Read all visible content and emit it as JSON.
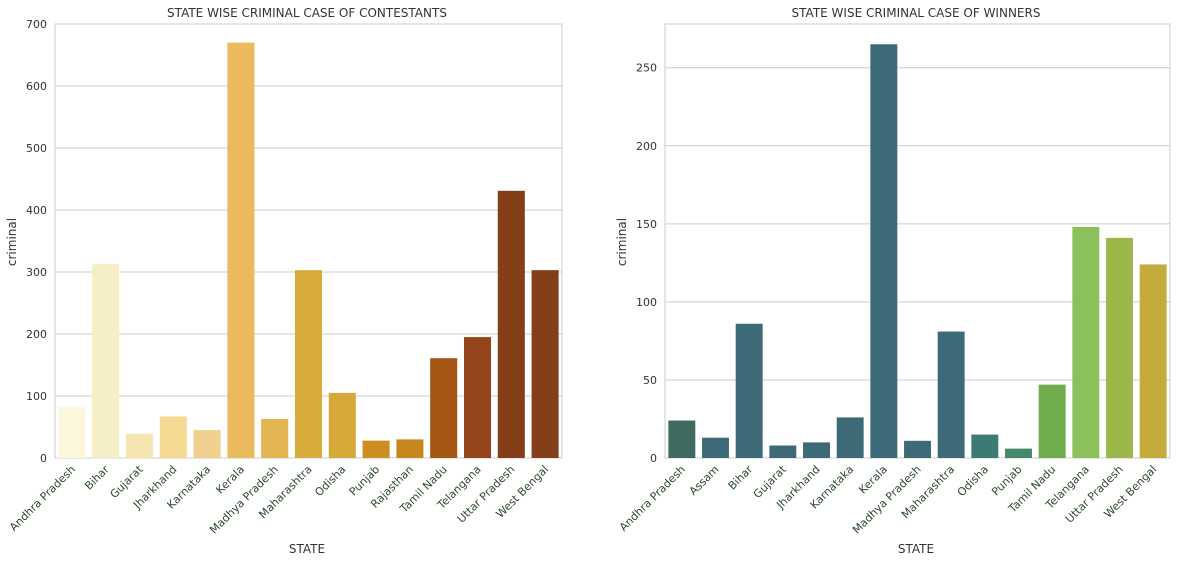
{
  "chart_data": [
    {
      "type": "bar",
      "title": "STATE WISE CRIMINAL CASE OF CONTESTANTS",
      "xlabel": "STATE",
      "ylabel": "criminal",
      "ylim": [
        0,
        700
      ],
      "yticks": [
        0,
        100,
        200,
        300,
        400,
        500,
        600,
        700
      ],
      "grid": true,
      "categories": [
        "Andhra Pradesh",
        "Bihar",
        "Gujarat",
        "Jharkhand",
        "Karnataka",
        "Kerala",
        "Madhya Pradesh",
        "Maharashtra",
        "Odisha",
        "Punjab",
        "Rajasthan",
        "Tamil Nadu",
        "Telangana",
        "Uttar Pradesh",
        "West Bengal"
      ],
      "values": [
        82,
        313,
        39,
        67,
        45,
        670,
        63,
        303,
        105,
        28,
        30,
        161,
        195,
        431,
        303
      ],
      "colors": [
        "#fbf6dc",
        "#f6eec4",
        "#f6e4b1",
        "#f4d992",
        "#efd08f",
        "#ebba5c",
        "#e4b352",
        "#d7ab3c",
        "#d6a83a",
        "#cc8e21",
        "#c7861e",
        "#a55615",
        "#94461a",
        "#843f18",
        "#843f18"
      ]
    },
    {
      "type": "bar",
      "title": "STATE WISE CRIMINAL CASE OF WINNERS",
      "xlabel": "STATE",
      "ylabel": "criminal",
      "ylim": [
        0,
        278
      ],
      "yticks": [
        0,
        50,
        100,
        150,
        200,
        250
      ],
      "grid": true,
      "categories": [
        "Andhra Pradesh",
        "Assam",
        "Bihar",
        "Gujarat",
        "Jharkhand",
        "Karnataka",
        "Kerala",
        "Madhya Pradesh",
        "Maharashtra",
        "Odisha",
        "Punjab",
        "Tamil Nadu",
        "Telangana",
        "Uttar Pradesh",
        "West Bengal"
      ],
      "values": [
        24,
        13,
        86,
        8,
        10,
        26,
        265,
        11,
        81,
        15,
        6,
        47,
        148,
        141,
        124
      ],
      "colors": [
        "#3e6a60",
        "#3d6a77",
        "#3d6a77",
        "#3d6a77",
        "#3d6a77",
        "#3d6a77",
        "#3d6a77",
        "#3d6a77",
        "#3d6a77",
        "#3d7a74",
        "#46886b",
        "#6fad4c",
        "#8bc15a",
        "#9ab84a",
        "#c4ab3c"
      ]
    }
  ]
}
